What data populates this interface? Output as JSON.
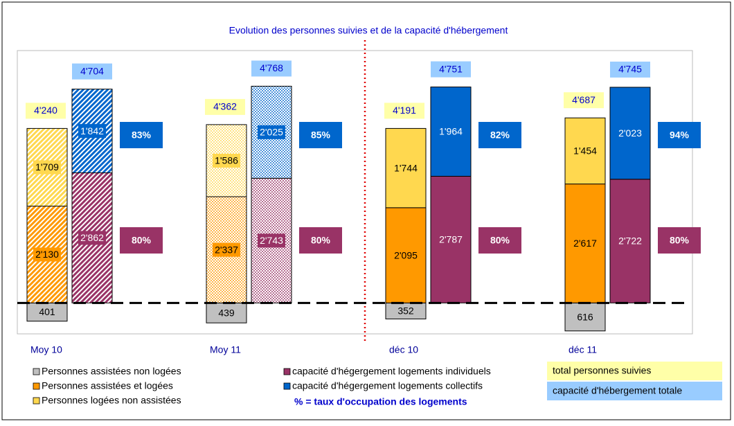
{
  "chart_data": {
    "type": "bar",
    "title": "Evolution des personnes suivies et de la capacité d'hébergement",
    "categories": [
      "Moy 10",
      "Moy 11",
      "déc 10",
      "déc 11"
    ],
    "fill_styles": [
      "hatched",
      "dotted",
      "solid",
      "solid"
    ],
    "ylim": [
      -650,
      5750
    ],
    "series": [
      {
        "name": "Personnes assistées non logées",
        "color": "#c0c0c0",
        "label_color": "#000000",
        "stack": 0,
        "below_baseline": true,
        "values": [
          401,
          439,
          352,
          616
        ]
      },
      {
        "name": "Personnes assistées et logées",
        "color": "#ff9900",
        "label_color": "#000000",
        "stack": 0,
        "values": [
          2130,
          2337,
          2095,
          2617
        ],
        "value_labels": [
          "2'130",
          "2'337",
          "2'095",
          "2'617"
        ]
      },
      {
        "name": "Personnes logées non assistées",
        "color": "#ffd84f",
        "label_color": "#000000",
        "stack": 0,
        "values": [
          1709,
          1586,
          1744,
          1454
        ],
        "value_labels": [
          "1'709",
          "1'586",
          "1'744",
          "1'454"
        ]
      },
      {
        "name": "capacité d'hégergement logements individuels",
        "color": "#993366",
        "label_color": "#ffffff",
        "stack": 1,
        "values": [
          2862,
          2743,
          2787,
          2722
        ],
        "value_labels": [
          "2'862",
          "2'743",
          "2'787",
          "2'722"
        ]
      },
      {
        "name": "capacité d'hégergement logements collectifs",
        "color": "#0066cc",
        "label_color": "#ffffff",
        "stack": 1,
        "values": [
          1842,
          2025,
          1964,
          2023
        ],
        "value_labels": [
          "1'842",
          "2'025",
          "1'964",
          "2'023"
        ]
      }
    ],
    "totals": [
      {
        "name": "total personnes suivies",
        "color": "#ffffa8",
        "values": [
          4240,
          4362,
          4191,
          4687
        ],
        "value_labels": [
          "4'240",
          "4'362",
          "4'191",
          "4'687"
        ]
      },
      {
        "name": "capacité d'hébergement totale",
        "color": "#99ccff",
        "values": [
          4704,
          4768,
          4751,
          4745
        ],
        "value_labels": [
          "4'704",
          "4'768",
          "4'751",
          "4'745"
        ]
      }
    ],
    "occupancy": [
      {
        "color": "#0066cc",
        "values": [
          83,
          85,
          82,
          94
        ],
        "value_labels": [
          "83%",
          "85%",
          "82%",
          "94%"
        ]
      },
      {
        "color": "#993366",
        "values": [
          80,
          80,
          80,
          80
        ],
        "value_labels": [
          "80%",
          "80%",
          "80%",
          "80%"
        ]
      }
    ],
    "note": "% = taux d'occupation des logements"
  }
}
